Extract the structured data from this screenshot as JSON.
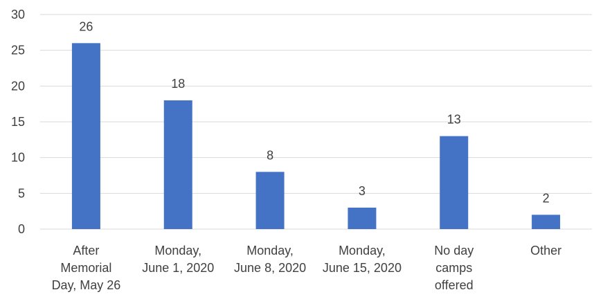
{
  "chart_data": {
    "type": "bar",
    "title": "",
    "xlabel": "",
    "ylabel": "",
    "categories": [
      [
        "After",
        "Memorial",
        "Day, May 26"
      ],
      [
        "Monday,",
        "June 1, 2020"
      ],
      [
        "Monday,",
        "June 8, 2020"
      ],
      [
        "Monday,",
        "June 15, 2020"
      ],
      [
        "No day",
        "camps",
        "offered"
      ],
      [
        "Other"
      ]
    ],
    "values": [
      26,
      18,
      8,
      3,
      13,
      2
    ],
    "data_labels": [
      "26",
      "18",
      "8",
      "3",
      "13",
      "2"
    ],
    "ylim": [
      0,
      30
    ],
    "yticks": [
      "0",
      "5",
      "10",
      "15",
      "20",
      "25",
      "30"
    ],
    "grid": true,
    "legend": "none",
    "bar_color": "#4472c4"
  }
}
